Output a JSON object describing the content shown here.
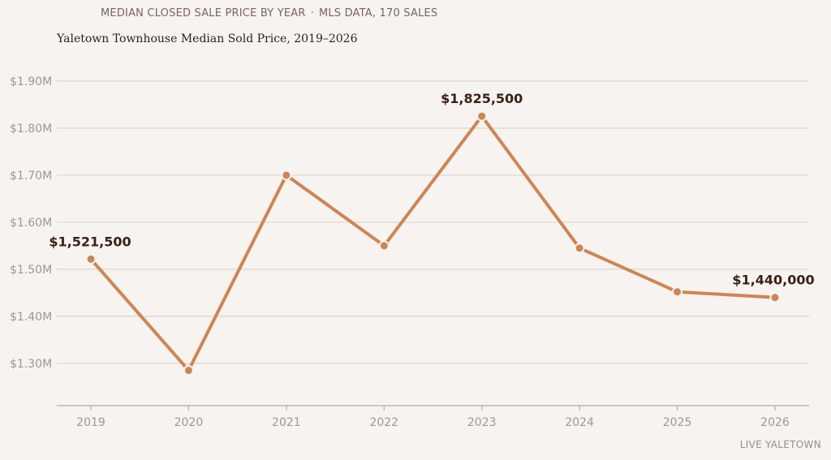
{
  "header": {
    "kicker_left": "MEDIAN CLOSED SALE PRICE BY YEAR",
    "kicker_sep": "·",
    "kicker_right": "MLS DATA, 170 SALES",
    "subtitle": "Yaletown Townhouse Median Sold Price, 2019–2026"
  },
  "footer": {
    "credit": "LIVE YALETOWN"
  },
  "colors": {
    "line": "#cf8552",
    "grid": "#ddd4cd",
    "axis": "#b9aca4",
    "background": "#f7f3f0"
  },
  "chart_data": {
    "type": "line",
    "title": "",
    "xlabel": "",
    "ylabel": "",
    "x": [
      "2019",
      "2020",
      "2021",
      "2022",
      "2023",
      "2024",
      "2025",
      "2026"
    ],
    "series": [
      {
        "values": [
          1521500,
          1285000,
          1700000,
          1550000,
          1825500,
          1545000,
          1452000,
          1440000
        ]
      }
    ],
    "ylim": [
      1210000,
      1900000
    ],
    "yticks": [
      1300000,
      1400000,
      1500000,
      1600000,
      1700000,
      1800000,
      1900000
    ],
    "ytick_labels": [
      "$1.30M",
      "$1.40M",
      "$1.50M",
      "$1.60M",
      "$1.70M",
      "$1.80M",
      "$1.90M"
    ],
    "data_labels": [
      {
        "index": 0,
        "text": "$1,521,500"
      },
      {
        "index": 4,
        "text": "$1,825,500"
      },
      {
        "index": 7,
        "text": "$1,440,000"
      }
    ],
    "grid": true,
    "legend": "none"
  }
}
